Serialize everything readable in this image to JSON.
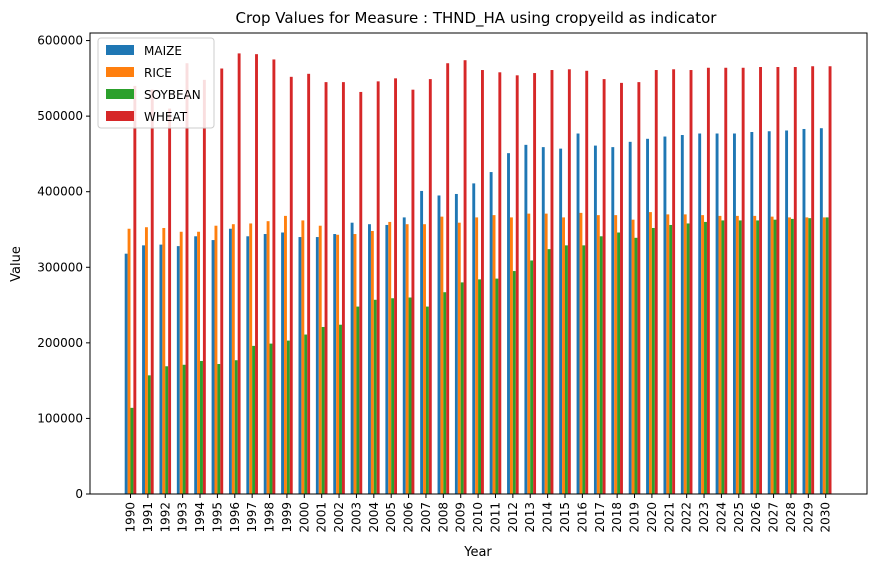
{
  "chart_data": {
    "type": "bar",
    "title": "Crop Values for Measure : THND_HA using cropyeild as indicator",
    "xlabel": "Year",
    "ylabel": "Value",
    "ylim": [
      0,
      610000
    ],
    "yticks": [
      0,
      100000,
      200000,
      300000,
      400000,
      500000,
      600000
    ],
    "legend_position": "top-left",
    "categories": [
      "1990",
      "1991",
      "1992",
      "1993",
      "1994",
      "1995",
      "1996",
      "1997",
      "1998",
      "1999",
      "2000",
      "2001",
      "2002",
      "2003",
      "2004",
      "2005",
      "2006",
      "2007",
      "2008",
      "2009",
      "2010",
      "2011",
      "2012",
      "2013",
      "2014",
      "2015",
      "2016",
      "2017",
      "2018",
      "2019",
      "2020",
      "2021",
      "2022",
      "2023",
      "2024",
      "2025",
      "2026",
      "2027",
      "2028",
      "2029",
      "2030"
    ],
    "series": [
      {
        "name": "MAIZE",
        "color": "#1f77b4",
        "values": [
          318000,
          329000,
          330000,
          328000,
          341000,
          336000,
          351000,
          341000,
          344000,
          346000,
          340000,
          340000,
          344000,
          359000,
          357000,
          356000,
          366000,
          401000,
          395000,
          397000,
          411000,
          426000,
          451000,
          462000,
          459000,
          457000,
          477000,
          461000,
          459000,
          466000,
          470000,
          473000,
          475000,
          477000,
          477000,
          477000,
          479000,
          480000,
          481000,
          483000,
          484000
        ]
      },
      {
        "name": "RICE",
        "color": "#ff7f0e",
        "values": [
          351000,
          353000,
          352000,
          347000,
          347000,
          355000,
          357000,
          358000,
          361000,
          368000,
          362000,
          355000,
          343000,
          344000,
          348000,
          360000,
          357000,
          357000,
          367000,
          359000,
          366000,
          369000,
          366000,
          371000,
          371000,
          366000,
          372000,
          369000,
          369000,
          363000,
          373000,
          370000,
          370000,
          369000,
          368000,
          368000,
          368000,
          367000,
          366000,
          366000,
          366000
        ]
      },
      {
        "name": "SOYBEAN",
        "color": "#2ca02c",
        "values": [
          114000,
          157000,
          169000,
          171000,
          176000,
          172000,
          177000,
          196000,
          199000,
          203000,
          211000,
          221000,
          224000,
          248000,
          257000,
          259000,
          260000,
          248000,
          267000,
          280000,
          284000,
          285000,
          295000,
          309000,
          324000,
          329000,
          329000,
          341000,
          346000,
          339000,
          352000,
          356000,
          358000,
          360000,
          362000,
          362000,
          362000,
          363000,
          364000,
          365000,
          366000
        ]
      },
      {
        "name": "WHEAT",
        "color": "#d62728",
        "values": [
          540000,
          535000,
          510000,
          570000,
          548000,
          563000,
          583000,
          582000,
          575000,
          552000,
          556000,
          545000,
          545000,
          532000,
          546000,
          550000,
          535000,
          549000,
          570000,
          574000,
          561000,
          558000,
          554000,
          557000,
          561000,
          562000,
          560000,
          549000,
          544000,
          545000,
          561000,
          562000,
          561000,
          564000,
          564000,
          564000,
          565000,
          565000,
          565000,
          566000,
          566000
        ]
      }
    ]
  }
}
